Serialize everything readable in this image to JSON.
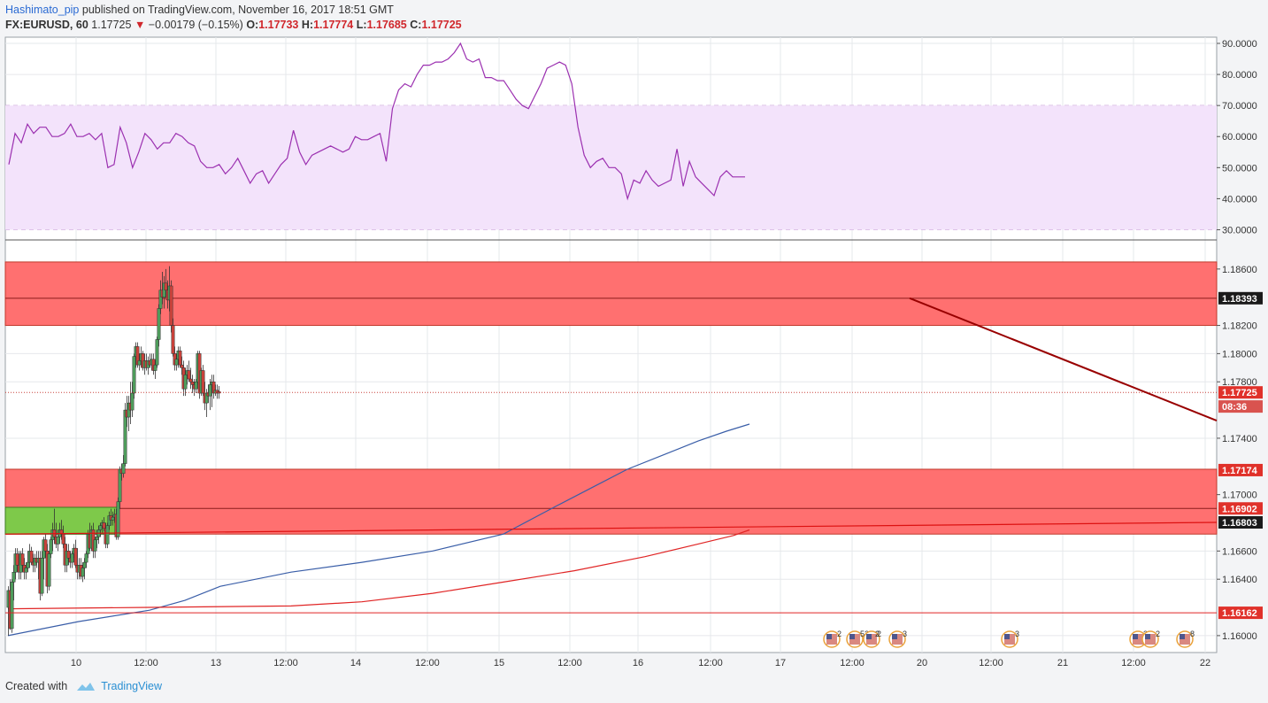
{
  "header": {
    "author": "Hashimato_pip",
    "published_text": "published on TradingView.com, November 16, 2017 18:51 GMT",
    "symbol": "FX:EURUSD, 60",
    "last": "1.17725",
    "change": "−0.00179 (−0.15%)",
    "open_label": "O:",
    "open": "1.17733",
    "high_label": "H:",
    "high": "1.17774",
    "low_label": "L:",
    "low": "1.17685",
    "close_label": "C:",
    "close": "1.17725"
  },
  "footer": {
    "created_with": "Created with",
    "brand": "TradingView"
  },
  "colors": {
    "rsi_line": "#9b30b0",
    "rsi_band": "#f3e3fb",
    "zone_red": "#ff7070",
    "zone_green": "#7ec94a",
    "candle_up": "#4f9d5c",
    "candle_down": "#c9423b",
    "ma_blue": "#3a5ea8",
    "ma_red": "#e02525",
    "trendline": "#990000",
    "axis_text": "#333333"
  },
  "chart_data": [
    {
      "type": "line",
      "name": "RSI",
      "ylim": [
        27,
        92
      ],
      "yticks": [
        "90.0000",
        "80.0000",
        "70.0000",
        "60.0000",
        "50.0000",
        "40.0000",
        "30.0000"
      ],
      "band": [
        30,
        70
      ],
      "values": [
        51,
        61,
        58,
        64,
        61,
        63,
        63,
        60,
        60,
        61,
        64,
        60,
        60,
        61,
        59,
        61,
        50,
        51,
        63,
        58,
        50,
        55,
        61,
        59,
        56,
        58,
        58,
        61,
        60,
        58,
        57,
        52,
        50,
        50,
        51,
        48,
        50,
        53,
        49,
        45,
        48,
        49,
        45,
        48,
        51,
        53,
        62,
        55,
        51,
        54,
        55,
        56,
        57,
        56,
        55,
        56,
        60,
        59,
        59,
        60,
        61,
        52,
        69,
        75,
        77,
        76,
        80,
        83,
        83,
        84,
        84,
        85,
        87,
        90,
        85,
        84,
        85,
        79,
        79,
        78,
        78,
        75,
        72,
        70,
        69,
        73,
        77,
        82,
        83,
        84,
        83,
        77,
        63,
        54,
        50,
        52,
        53,
        50,
        50,
        48,
        40,
        46,
        45,
        49,
        46,
        44,
        45,
        46,
        56,
        44,
        52,
        47,
        45,
        43,
        41,
        47,
        49,
        47,
        47,
        47
      ]
    },
    {
      "type": "candlestick",
      "name": "FX:EURUSD, 60",
      "ylim": [
        1.1588,
        1.188
      ],
      "yticks": [
        "1.18600",
        "1.18200",
        "1.18000",
        "1.17800",
        "1.17400",
        "1.17000",
        "1.16600",
        "1.16400",
        "1.16000"
      ],
      "xticks": [
        "10",
        "12:00",
        "13",
        "12:00",
        "14",
        "12:00",
        "15",
        "12:00",
        "16",
        "12:00",
        "17",
        "12:00",
        "20",
        "12:00",
        "21",
        "12:00",
        "22"
      ],
      "price_labels": [
        {
          "value": 1.18393,
          "text": "1.18393",
          "style": "black"
        },
        {
          "value": 1.17725,
          "text": "1.17725",
          "style": "red"
        },
        {
          "value": 1.17625,
          "text": "08:36",
          "style": "red"
        },
        {
          "value": 1.17174,
          "text": "1.17174",
          "style": "red"
        },
        {
          "value": 1.16902,
          "text": "1.16902",
          "style": "red"
        },
        {
          "value": 1.16803,
          "text": "1.16803",
          "style": "black"
        },
        {
          "value": 1.16162,
          "text": "1.16162",
          "style": "red"
        }
      ],
      "candles": [
        [
          1.162,
          1.1635,
          1.16,
          1.1632
        ],
        [
          1.1632,
          1.164,
          1.1604,
          1.1605
        ],
        [
          1.1605,
          1.164,
          1.1602,
          1.1638
        ],
        [
          1.1638,
          1.165,
          1.1625,
          1.1645
        ],
        [
          1.1645,
          1.1662,
          1.164,
          1.1658
        ],
        [
          1.1658,
          1.1662,
          1.1645,
          1.165
        ],
        [
          1.165,
          1.166,
          1.164,
          1.1645
        ],
        [
          1.1645,
          1.166,
          1.164,
          1.1658
        ],
        [
          1.1658,
          1.1662,
          1.1645,
          1.165
        ],
        [
          1.165,
          1.1655,
          1.164,
          1.1645
        ],
        [
          1.1645,
          1.1652,
          1.164,
          1.1648
        ],
        [
          1.1648,
          1.166,
          1.1645,
          1.1652
        ],
        [
          1.1652,
          1.1665,
          1.1648,
          1.166
        ],
        [
          1.166,
          1.1663,
          1.165,
          1.1652
        ],
        [
          1.1652,
          1.1658,
          1.1645,
          1.165
        ],
        [
          1.165,
          1.1658,
          1.1645,
          1.1655
        ],
        [
          1.1655,
          1.166,
          1.1648,
          1.1652
        ],
        [
          1.1652,
          1.166,
          1.164,
          1.1655
        ],
        [
          1.1655,
          1.166,
          1.1625,
          1.163
        ],
        [
          1.163,
          1.166,
          1.1628,
          1.1655
        ],
        [
          1.1655,
          1.167,
          1.164,
          1.1668
        ],
        [
          1.1668,
          1.1672,
          1.1655,
          1.166
        ],
        [
          1.166,
          1.1665,
          1.163,
          1.1635
        ],
        [
          1.1635,
          1.166,
          1.1632,
          1.1658
        ],
        [
          1.1658,
          1.167,
          1.1655,
          1.1668
        ],
        [
          1.1668,
          1.168,
          1.166,
          1.1675
        ],
        [
          1.1675,
          1.169,
          1.1665,
          1.167
        ],
        [
          1.167,
          1.168,
          1.1662,
          1.1665
        ],
        [
          1.1665,
          1.1675,
          1.166,
          1.167
        ],
        [
          1.167,
          1.168,
          1.1665,
          1.1675
        ],
        [
          1.1675,
          1.1682,
          1.1668,
          1.1672
        ],
        [
          1.1672,
          1.1678,
          1.1662,
          1.1665
        ],
        [
          1.1665,
          1.167,
          1.1645,
          1.165
        ],
        [
          1.165,
          1.1665,
          1.1645,
          1.166
        ],
        [
          1.166,
          1.1665,
          1.165,
          1.1655
        ],
        [
          1.1655,
          1.166,
          1.1648,
          1.1652
        ],
        [
          1.1652,
          1.166,
          1.1648,
          1.1658
        ],
        [
          1.1658,
          1.1665,
          1.1655,
          1.1662
        ],
        [
          1.1662,
          1.1668,
          1.1648,
          1.165
        ],
        [
          1.165,
          1.1662,
          1.164,
          1.1645
        ],
        [
          1.1645,
          1.1655,
          1.164,
          1.165
        ],
        [
          1.165,
          1.1655,
          1.164,
          1.1642
        ],
        [
          1.1642,
          1.1652,
          1.1638,
          1.1648
        ],
        [
          1.1648,
          1.1655,
          1.164,
          1.1652
        ],
        [
          1.1652,
          1.166,
          1.1648,
          1.1658
        ],
        [
          1.1658,
          1.1675,
          1.1655,
          1.1672
        ],
        [
          1.1672,
          1.168,
          1.166,
          1.1662
        ],
        [
          1.1662,
          1.1678,
          1.166,
          1.1675
        ],
        [
          1.1675,
          1.168,
          1.1655,
          1.166
        ],
        [
          1.166,
          1.167,
          1.1655,
          1.1668
        ],
        [
          1.1668,
          1.1675,
          1.1662,
          1.167
        ],
        [
          1.167,
          1.1678,
          1.1665,
          1.1675
        ],
        [
          1.1675,
          1.168,
          1.167,
          1.1678
        ],
        [
          1.1678,
          1.1682,
          1.1672,
          1.168
        ],
        [
          1.168,
          1.1684,
          1.1674,
          1.1676
        ],
        [
          1.1676,
          1.168,
          1.1662,
          1.1665
        ],
        [
          1.1665,
          1.168,
          1.1662,
          1.1678
        ],
        [
          1.1678,
          1.1688,
          1.1675,
          1.1685
        ],
        [
          1.1685,
          1.169,
          1.1678,
          1.1682
        ],
        [
          1.1682,
          1.1688,
          1.1678,
          1.1684
        ],
        [
          1.1684,
          1.169,
          1.168,
          1.1686
        ],
        [
          1.1686,
          1.169,
          1.1668,
          1.167
        ],
        [
          1.167,
          1.1698,
          1.1668,
          1.1695
        ],
        [
          1.1695,
          1.172,
          1.169,
          1.1718
        ],
        [
          1.1718,
          1.1722,
          1.171,
          1.1715
        ],
        [
          1.1715,
          1.1728,
          1.1712,
          1.1722
        ],
        [
          1.1722,
          1.1765,
          1.172,
          1.176
        ],
        [
          1.176,
          1.177,
          1.1748,
          1.1755
        ],
        [
          1.1755,
          1.177,
          1.1745,
          1.1765
        ],
        [
          1.1765,
          1.178,
          1.175,
          1.176
        ],
        [
          1.176,
          1.178,
          1.1755,
          1.1772
        ],
        [
          1.1772,
          1.18,
          1.1768,
          1.1798
        ],
        [
          1.1798,
          1.1808,
          1.179,
          1.1805
        ],
        [
          1.1805,
          1.1808,
          1.179,
          1.1792
        ],
        [
          1.1792,
          1.18,
          1.1788,
          1.1795
        ],
        [
          1.1795,
          1.1805,
          1.179,
          1.18
        ],
        [
          1.18,
          1.1802,
          1.1788,
          1.179
        ],
        [
          1.179,
          1.18,
          1.1785,
          1.1795
        ],
        [
          1.1795,
          1.18,
          1.1788,
          1.179
        ],
        [
          1.179,
          1.1798,
          1.1785,
          1.1795
        ],
        [
          1.1795,
          1.18,
          1.179,
          1.1792
        ],
        [
          1.1792,
          1.18,
          1.1788,
          1.1796
        ],
        [
          1.1796,
          1.18,
          1.1785,
          1.1788
        ],
        [
          1.1788,
          1.1795,
          1.1782,
          1.1792
        ],
        [
          1.1792,
          1.1812,
          1.179,
          1.181
        ],
        [
          1.181,
          1.1835,
          1.1805,
          1.1832
        ],
        [
          1.1832,
          1.1852,
          1.1828,
          1.1845
        ],
        [
          1.1845,
          1.1858,
          1.1835,
          1.184
        ],
        [
          1.184,
          1.1855,
          1.1832,
          1.185
        ],
        [
          1.185,
          1.186,
          1.184,
          1.1845
        ],
        [
          1.1845,
          1.1852,
          1.1832,
          1.1838
        ],
        [
          1.1838,
          1.1862,
          1.183,
          1.1848
        ],
        [
          1.1848,
          1.1852,
          1.1815,
          1.182
        ],
        [
          1.182,
          1.1825,
          1.1798,
          1.18
        ],
        [
          1.18,
          1.1805,
          1.1788,
          1.1792
        ],
        [
          1.1792,
          1.18,
          1.1788,
          1.1796
        ],
        [
          1.1796,
          1.1805,
          1.179,
          1.1802
        ],
        [
          1.1802,
          1.1805,
          1.179,
          1.1792
        ],
        [
          1.1792,
          1.1798,
          1.1785,
          1.179
        ],
        [
          1.179,
          1.1795,
          1.177,
          1.1775
        ],
        [
          1.1775,
          1.179,
          1.177,
          1.1785
        ],
        [
          1.1785,
          1.1792,
          1.1778,
          1.1788
        ],
        [
          1.1788,
          1.1795,
          1.178,
          1.1782
        ],
        [
          1.1782,
          1.179,
          1.1775,
          1.178
        ],
        [
          1.178,
          1.1785,
          1.1772,
          1.1778
        ],
        [
          1.1778,
          1.1782,
          1.177,
          1.1775
        ],
        [
          1.1775,
          1.1782,
          1.1772,
          1.178
        ],
        [
          1.178,
          1.1802,
          1.1778,
          1.18
        ],
        [
          1.18,
          1.1802,
          1.1768,
          1.1772
        ],
        [
          1.1772,
          1.179,
          1.177,
          1.1788
        ],
        [
          1.1788,
          1.1792,
          1.177,
          1.1772
        ],
        [
          1.1772,
          1.178,
          1.176,
          1.1765
        ],
        [
          1.1765,
          1.1775,
          1.1755,
          1.1772
        ],
        [
          1.1772,
          1.1778,
          1.1765,
          1.177
        ],
        [
          1.177,
          1.1782,
          1.176,
          1.1778
        ],
        [
          1.1778,
          1.1785,
          1.1762,
          1.178
        ],
        [
          1.178,
          1.1785,
          1.1768,
          1.1772
        ],
        [
          1.1772,
          1.1778,
          1.177,
          1.1774
        ],
        [
          1.1774,
          1.1778,
          1.1768,
          1.1772
        ],
        [
          1.1773,
          1.1777,
          1.1768,
          1.1772
        ]
      ],
      "ma_blue": [
        [
          0,
          1.16
        ],
        [
          40,
          1.161
        ],
        [
          80,
          1.1618
        ],
        [
          100,
          1.1625
        ],
        [
          120,
          1.1635
        ],
        [
          160,
          1.1645
        ],
        [
          200,
          1.1652
        ],
        [
          240,
          1.166
        ],
        [
          280,
          1.1672
        ],
        [
          310,
          1.1692
        ],
        [
          330,
          1.1705
        ],
        [
          350,
          1.1718
        ],
        [
          370,
          1.1728
        ],
        [
          390,
          1.1738
        ],
        [
          406,
          1.1745
        ],
        [
          419,
          1.175
        ]
      ],
      "ma_red": [
        [
          0,
          1.1619
        ],
        [
          80,
          1.162
        ],
        [
          160,
          1.1621
        ],
        [
          200,
          1.1624
        ],
        [
          240,
          1.163
        ],
        [
          280,
          1.1638
        ],
        [
          320,
          1.1646
        ],
        [
          360,
          1.1656
        ],
        [
          390,
          1.1665
        ],
        [
          410,
          1.1671
        ],
        [
          419,
          1.1675
        ]
      ],
      "zones": [
        {
          "top": 1.1865,
          "bottom": 1.182,
          "color": "red",
          "line": 1.18393
        },
        {
          "top": 1.1718,
          "bottom": 1.1672,
          "color": "red",
          "line": 1.16902
        }
      ],
      "green_zone": {
        "top": 1.1691,
        "bottom": 1.1672,
        "x_end_candle": 62
      },
      "hlines": [
        1.16162
      ],
      "trendline": [
        [
          1.18393,
          1.17525
        ]
      ],
      "event_icon_counts": [
        "2",
        "52",
        "2",
        "2",
        "3",
        "3",
        "3",
        "2",
        "8"
      ]
    }
  ]
}
